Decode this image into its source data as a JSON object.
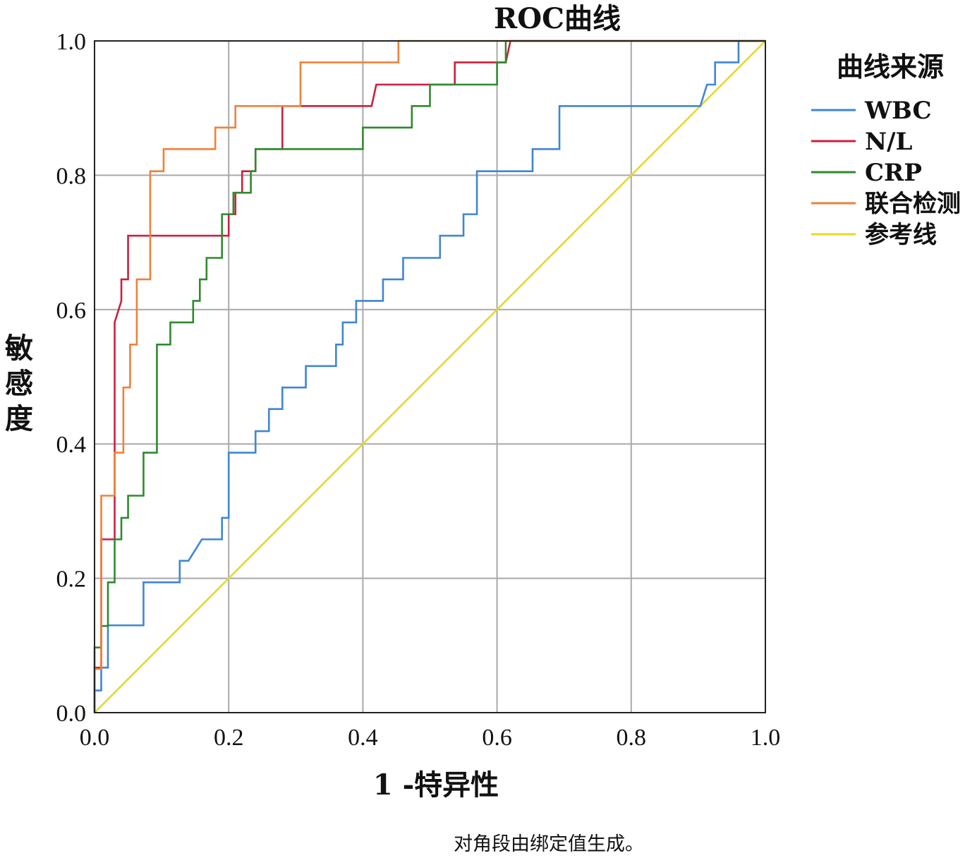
{
  "chart_data": {
    "type": "line",
    "title": "ROC曲线",
    "xlabel": "1 -特异性",
    "ylabel": "敏感度",
    "xlim": [
      0,
      1
    ],
    "ylim": [
      0,
      1
    ],
    "x_ticks": [
      "0.0",
      "0.2",
      "0.4",
      "0.6",
      "0.8",
      "1.0"
    ],
    "y_ticks": [
      "0.0",
      "0.2",
      "0.4",
      "0.6",
      "0.8",
      "1.0"
    ],
    "grid": true,
    "legend_title": "曲线来源",
    "legend_position": "right",
    "footnote": "对角段由绑定值生成。",
    "series": [
      {
        "name": "WBC",
        "color": "#3f86d6",
        "points": [
          [
            0,
            0
          ],
          [
            0,
            0.033
          ],
          [
            0.01,
            0.033
          ],
          [
            0.01,
            0.067
          ],
          [
            0.02,
            0.067
          ],
          [
            0.02,
            0.13
          ],
          [
            0.073,
            0.13
          ],
          [
            0.073,
            0.194
          ],
          [
            0.127,
            0.194
          ],
          [
            0.127,
            0.226
          ],
          [
            0.14,
            0.226
          ],
          [
            0.16,
            0.258
          ],
          [
            0.19,
            0.258
          ],
          [
            0.19,
            0.29
          ],
          [
            0.2,
            0.29
          ],
          [
            0.2,
            0.387
          ],
          [
            0.24,
            0.387
          ],
          [
            0.24,
            0.419
          ],
          [
            0.26,
            0.419
          ],
          [
            0.26,
            0.452
          ],
          [
            0.28,
            0.452
          ],
          [
            0.28,
            0.484
          ],
          [
            0.315,
            0.484
          ],
          [
            0.315,
            0.516
          ],
          [
            0.36,
            0.516
          ],
          [
            0.36,
            0.548
          ],
          [
            0.37,
            0.548
          ],
          [
            0.37,
            0.581
          ],
          [
            0.39,
            0.581
          ],
          [
            0.39,
            0.613
          ],
          [
            0.43,
            0.613
          ],
          [
            0.43,
            0.645
          ],
          [
            0.46,
            0.645
          ],
          [
            0.46,
            0.677
          ],
          [
            0.515,
            0.677
          ],
          [
            0.515,
            0.71
          ],
          [
            0.55,
            0.71
          ],
          [
            0.55,
            0.742
          ],
          [
            0.57,
            0.742
          ],
          [
            0.57,
            0.806
          ],
          [
            0.653,
            0.806
          ],
          [
            0.653,
            0.839
          ],
          [
            0.693,
            0.839
          ],
          [
            0.693,
            0.903
          ],
          [
            0.903,
            0.903
          ],
          [
            0.913,
            0.935
          ],
          [
            0.925,
            0.935
          ],
          [
            0.925,
            0.968
          ],
          [
            0.96,
            0.968
          ],
          [
            0.96,
            1
          ],
          [
            1,
            1
          ]
        ]
      },
      {
        "name": "N/L",
        "color": "#cc1f3c",
        "points": [
          [
            0,
            0
          ],
          [
            0,
            0.067
          ],
          [
            0.01,
            0.067
          ],
          [
            0.01,
            0.258
          ],
          [
            0.03,
            0.258
          ],
          [
            0.03,
            0.581
          ],
          [
            0.04,
            0.613
          ],
          [
            0.04,
            0.645
          ],
          [
            0.05,
            0.645
          ],
          [
            0.05,
            0.71
          ],
          [
            0.2,
            0.71
          ],
          [
            0.2,
            0.742
          ],
          [
            0.21,
            0.742
          ],
          [
            0.21,
            0.774
          ],
          [
            0.22,
            0.774
          ],
          [
            0.22,
            0.806
          ],
          [
            0.24,
            0.806
          ],
          [
            0.24,
            0.839
          ],
          [
            0.28,
            0.839
          ],
          [
            0.28,
            0.903
          ],
          [
            0.413,
            0.903
          ],
          [
            0.42,
            0.935
          ],
          [
            0.537,
            0.935
          ],
          [
            0.537,
            0.968
          ],
          [
            0.613,
            0.968
          ],
          [
            0.62,
            1
          ],
          [
            1,
            1
          ]
        ]
      },
      {
        "name": "CRP",
        "color": "#2e8a2e",
        "points": [
          [
            0,
            0
          ],
          [
            0,
            0.097
          ],
          [
            0.01,
            0.097
          ],
          [
            0.01,
            0.129
          ],
          [
            0.02,
            0.129
          ],
          [
            0.02,
            0.194
          ],
          [
            0.03,
            0.194
          ],
          [
            0.03,
            0.258
          ],
          [
            0.04,
            0.258
          ],
          [
            0.04,
            0.29
          ],
          [
            0.05,
            0.29
          ],
          [
            0.05,
            0.323
          ],
          [
            0.073,
            0.323
          ],
          [
            0.073,
            0.387
          ],
          [
            0.093,
            0.387
          ],
          [
            0.093,
            0.548
          ],
          [
            0.113,
            0.548
          ],
          [
            0.113,
            0.581
          ],
          [
            0.147,
            0.581
          ],
          [
            0.147,
            0.613
          ],
          [
            0.157,
            0.613
          ],
          [
            0.157,
            0.645
          ],
          [
            0.167,
            0.645
          ],
          [
            0.167,
            0.677
          ],
          [
            0.19,
            0.677
          ],
          [
            0.19,
            0.742
          ],
          [
            0.207,
            0.742
          ],
          [
            0.207,
            0.774
          ],
          [
            0.233,
            0.774
          ],
          [
            0.233,
            0.806
          ],
          [
            0.24,
            0.806
          ],
          [
            0.24,
            0.839
          ],
          [
            0.4,
            0.839
          ],
          [
            0.4,
            0.871
          ],
          [
            0.473,
            0.871
          ],
          [
            0.473,
            0.903
          ],
          [
            0.5,
            0.903
          ],
          [
            0.5,
            0.935
          ],
          [
            0.6,
            0.935
          ],
          [
            0.6,
            0.968
          ],
          [
            0.613,
            0.968
          ],
          [
            0.613,
            1
          ],
          [
            1,
            1
          ]
        ]
      },
      {
        "name": "联合检测",
        "color": "#f0813a",
        "points": [
          [
            0,
            0
          ],
          [
            0,
            0.065
          ],
          [
            0.01,
            0.065
          ],
          [
            0.01,
            0.323
          ],
          [
            0.03,
            0.323
          ],
          [
            0.03,
            0.387
          ],
          [
            0.043,
            0.387
          ],
          [
            0.043,
            0.484
          ],
          [
            0.053,
            0.484
          ],
          [
            0.053,
            0.548
          ],
          [
            0.063,
            0.548
          ],
          [
            0.063,
            0.645
          ],
          [
            0.083,
            0.645
          ],
          [
            0.083,
            0.806
          ],
          [
            0.103,
            0.806
          ],
          [
            0.103,
            0.839
          ],
          [
            0.18,
            0.839
          ],
          [
            0.18,
            0.871
          ],
          [
            0.21,
            0.871
          ],
          [
            0.21,
            0.903
          ],
          [
            0.307,
            0.903
          ],
          [
            0.307,
            0.968
          ],
          [
            0.453,
            0.968
          ],
          [
            0.453,
            1
          ],
          [
            1,
            1
          ]
        ]
      },
      {
        "name": "参考线",
        "color": "#e6d92a",
        "points": [
          [
            0,
            0
          ],
          [
            1,
            1
          ]
        ]
      }
    ]
  }
}
